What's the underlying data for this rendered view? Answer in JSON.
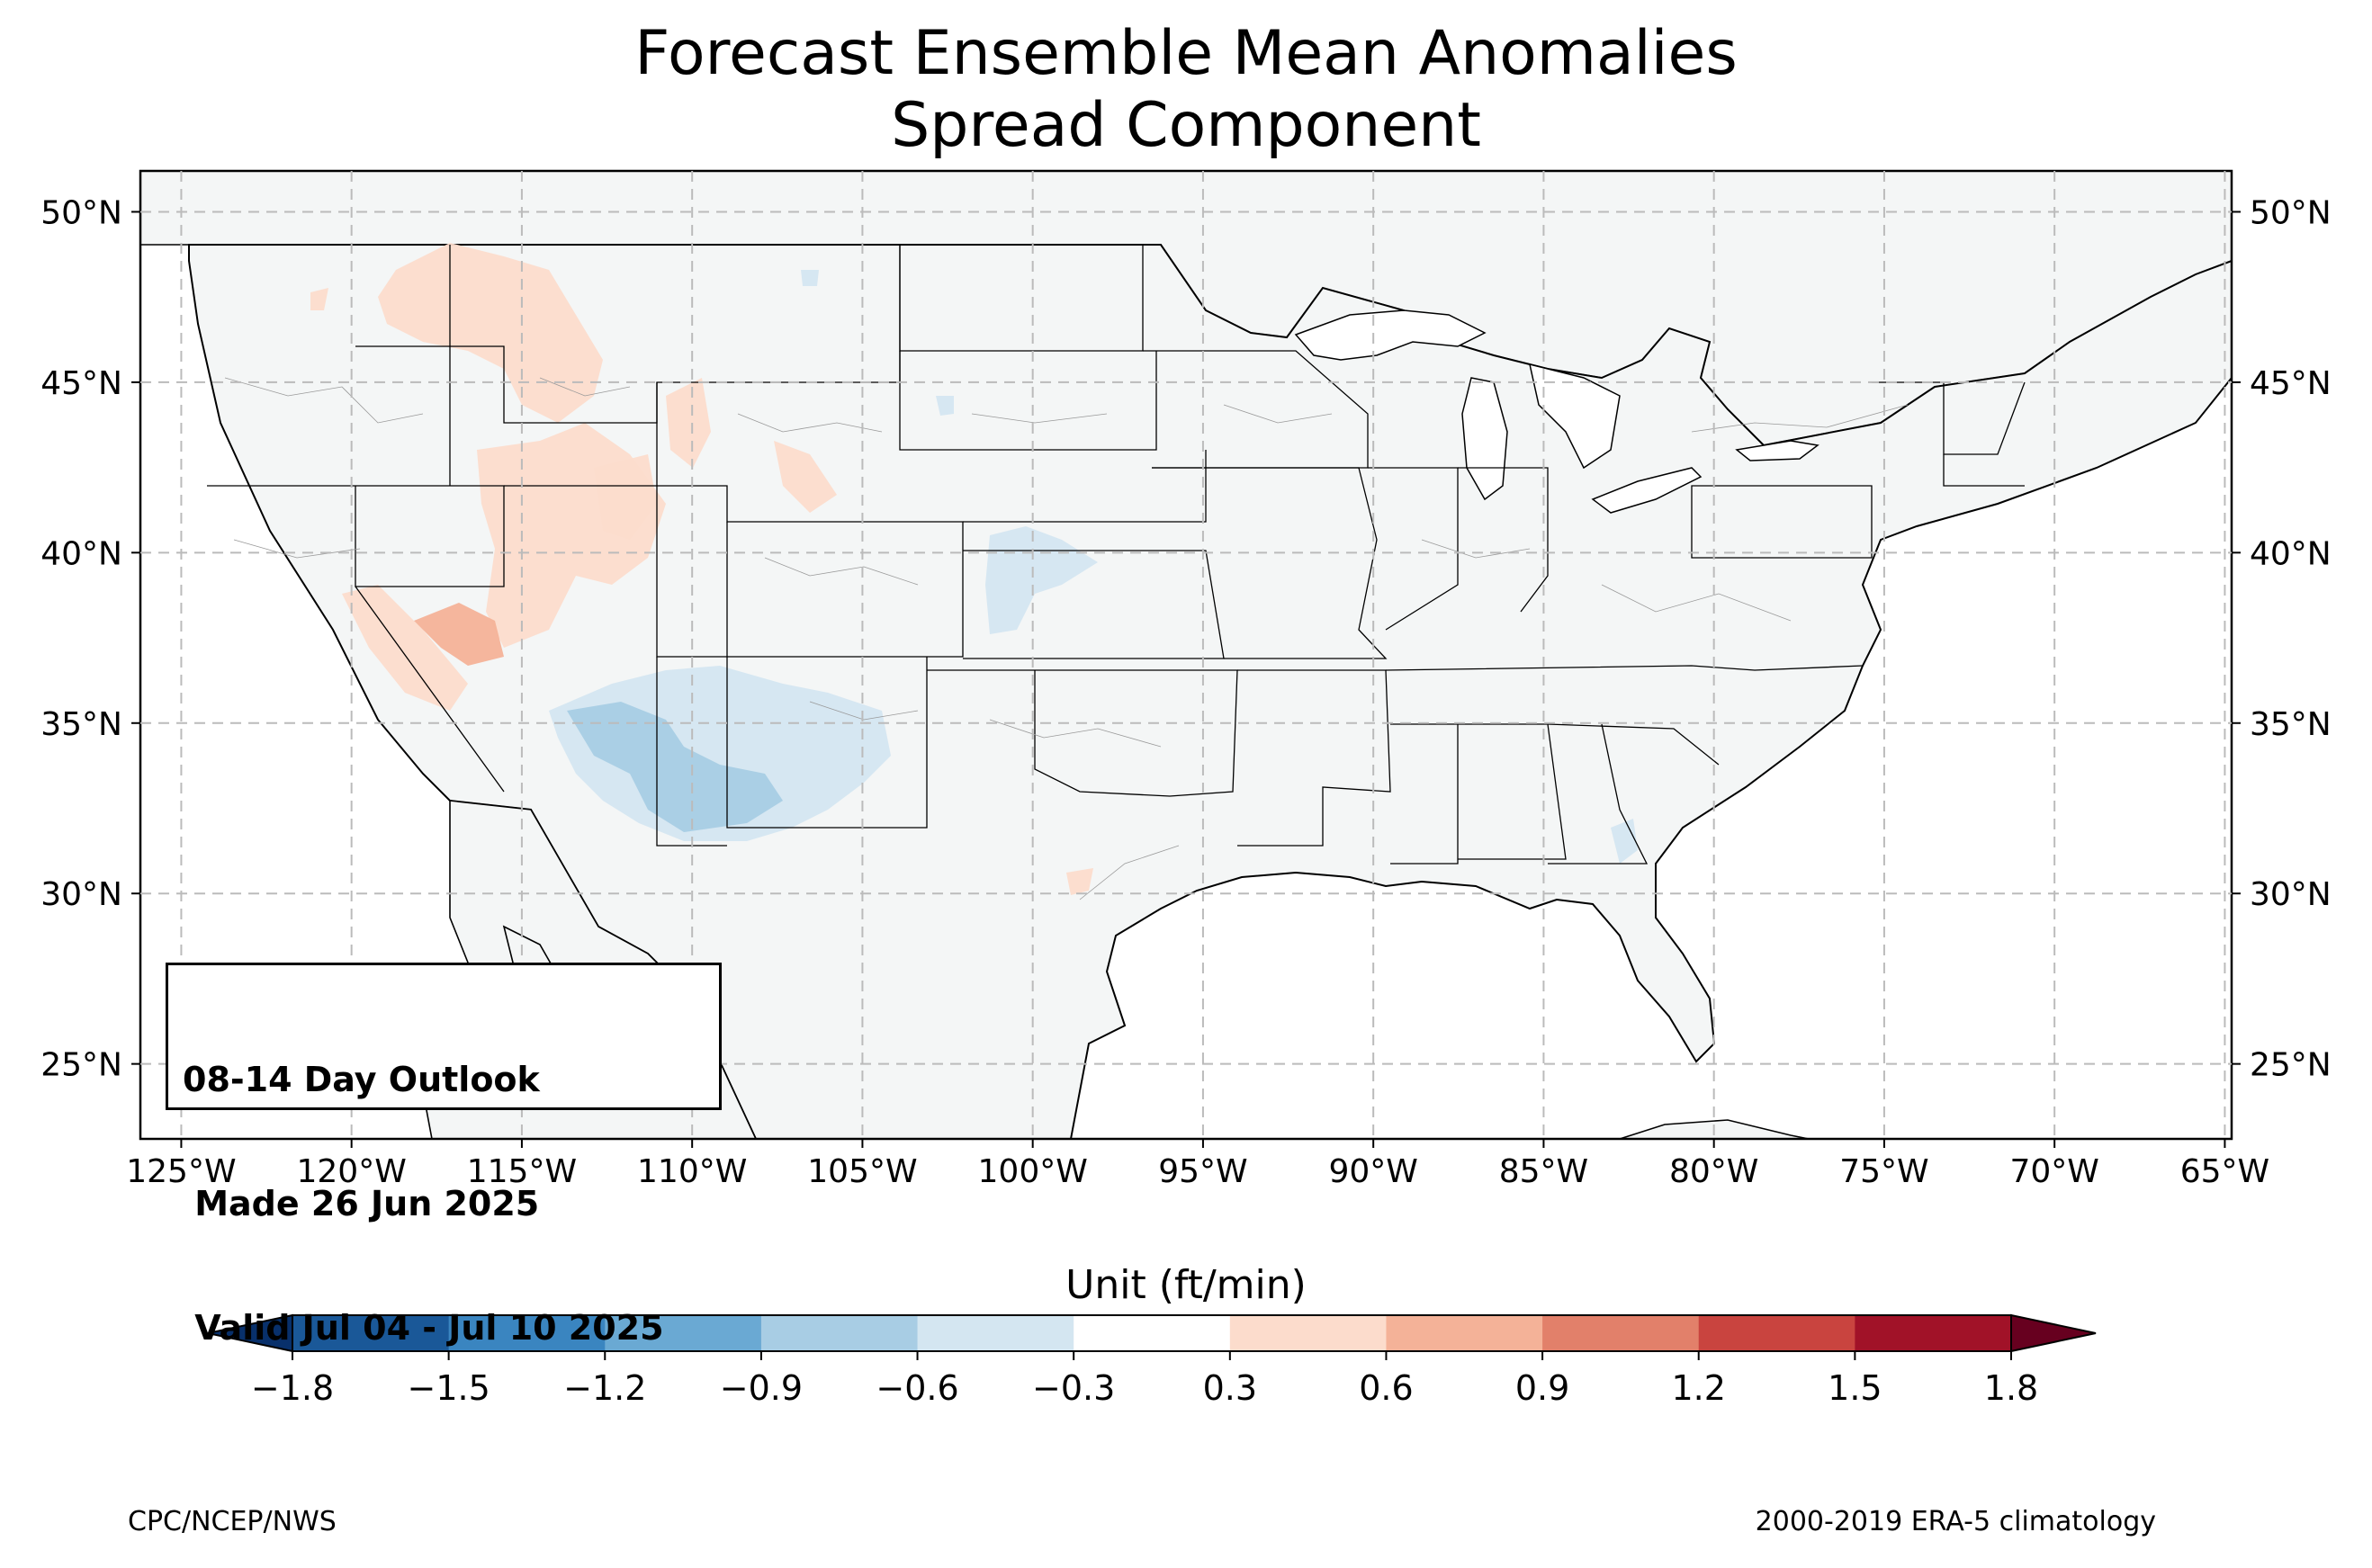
{
  "title": {
    "line1": "Forecast Ensemble Mean Anomalies",
    "line2": "Spread Component"
  },
  "map": {
    "lon_range": [
      -126.2,
      -64.8
    ],
    "lat_range": [
      22.8,
      51.2
    ],
    "lon_ticks": [
      "125°W",
      "120°W",
      "115°W",
      "110°W",
      "105°W",
      "100°W",
      "95°W",
      "90°W",
      "85°W",
      "80°W",
      "75°W",
      "70°W",
      "65°W"
    ],
    "lon_tick_values": [
      -125,
      -120,
      -115,
      -110,
      -105,
      -100,
      -95,
      -90,
      -85,
      -80,
      -75,
      -70,
      -65
    ],
    "lat_ticks": [
      "50°N",
      "45°N",
      "40°N",
      "35°N",
      "30°N",
      "25°N"
    ],
    "lat_tick_values": [
      50,
      45,
      40,
      35,
      30,
      25
    ],
    "gridlines": "dashed",
    "land_color": "#f4f6f6",
    "anomaly_regions": [
      {
        "level": "0.3 to 0.6",
        "color": "#fcdccc",
        "area": "northern Rockies, Idaho / Montana"
      },
      {
        "level": "0.3 to 0.6",
        "color": "#fcdccc",
        "area": "Utah / Wyoming / Colorado"
      },
      {
        "level": "0.6 to 0.9",
        "color": "#f4b298",
        "area": "Nevada / eastern California"
      },
      {
        "level": "0.3 to 0.6",
        "color": "#fcdccc",
        "area": "south Texas"
      },
      {
        "level": "-0.6 to -0.3",
        "color": "#d4e6f1",
        "area": "Arizona / New Mexico"
      },
      {
        "level": "-0.9 to -0.6",
        "color": "#a8cde4",
        "area": "central Arizona / southwest New Mexico"
      },
      {
        "level": "-0.6 to -0.3",
        "color": "#d4e6f1",
        "area": "Kansas / Nebraska"
      },
      {
        "level": "-0.6 to -0.3",
        "color": "#d4e6f1",
        "area": "Georgia coast"
      }
    ]
  },
  "outlook_box": {
    "line1": "08-14 Day Outlook",
    "line2": " Made 26 Jun 2025",
    "line3": " Valid Jul 04 - Jul 10 2025"
  },
  "colorbar": {
    "label": "Unit (ft/min)",
    "ticks": [
      "−1.8",
      "−1.5",
      "−1.2",
      "−0.9",
      "−0.6",
      "−0.3",
      "0.3",
      "0.6",
      "0.9",
      "1.2",
      "1.5",
      "1.8"
    ],
    "under_color": "#08306b",
    "over_color": "#67001f",
    "colors": [
      "#1a5898",
      "#3a85c0",
      "#6aa9d3",
      "#a8cde4",
      "#d4e6f1",
      "#ffffff",
      "#fcdccc",
      "#f4b298",
      "#e2806a",
      "#c9443f",
      "#a11228"
    ]
  },
  "footer": {
    "left": "CPC/NCEP/NWS",
    "right": "2000-2019 ERA-5 climatology"
  }
}
